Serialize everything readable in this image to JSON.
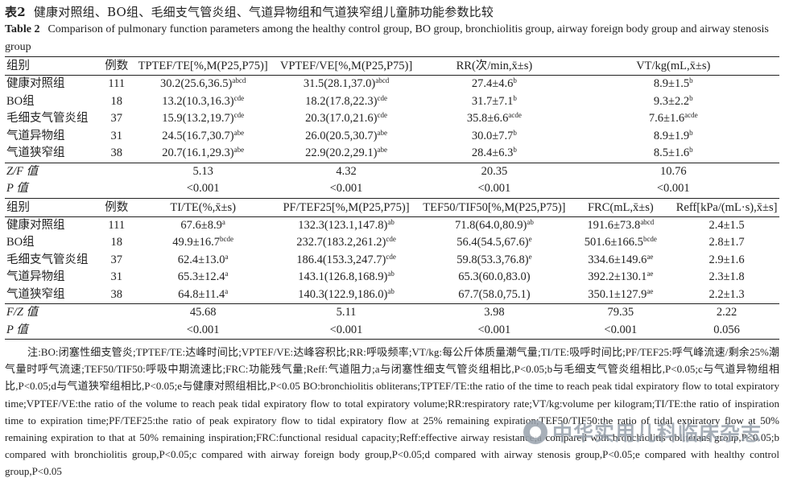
{
  "caption": {
    "cn_label": "表2",
    "cn_title": "健康对照组、BO组、毛细支气管炎组、气道异物组和气道狭窄组儿童肺功能参数比较",
    "en_label": "Table 2",
    "en_title": "Comparison of pulmonary function parameters among the healthy control group, BO group, bronchiolitis group, airway foreign body group and airway stenosis group"
  },
  "table1": {
    "headers": [
      "组别",
      "例数",
      "TPTEF/TE[%,M(P25,P75)]",
      "VPTEF/VE[%,M(P25,P75)]",
      "RR(次/min,x̄±s)",
      "VT/kg(mL,x̄±s)"
    ],
    "rows": [
      {
        "group": "健康对照组",
        "n": "111",
        "v1": "30.2(25.6,36.5)",
        "s1": "abcd",
        "v2": "31.5(28.1,37.0)",
        "s2": "abcd",
        "v3": "27.4±4.6",
        "s3": "b",
        "v4": "8.9±1.5",
        "s4": "b"
      },
      {
        "group": "BO组",
        "n": "18",
        "v1": "13.2(10.3,16.3)",
        "s1": "cde",
        "v2": "18.2(17.8,22.3)",
        "s2": "cde",
        "v3": "31.7±7.1",
        "s3": "b",
        "v4": "9.3±2.2",
        "s4": "b"
      },
      {
        "group": "毛细支气管炎组",
        "n": "37",
        "v1": "15.9(13.2,19.7)",
        "s1": "cde",
        "v2": "20.3(17.0,21.6)",
        "s2": "cde",
        "v3": "35.8±6.6",
        "s3": "acde",
        "v4": "7.6±1.6",
        "s4": "acde"
      },
      {
        "group": "气道异物组",
        "n": "31",
        "v1": "24.5(16.7,30.7)",
        "s1": "abe",
        "v2": "26.0(20.5,30.7)",
        "s2": "abe",
        "v3": "30.0±7.7",
        "s3": "b",
        "v4": "8.9±1.9",
        "s4": "b"
      },
      {
        "group": "气道狭窄组",
        "n": "38",
        "v1": "20.7(16.1,29.3)",
        "s1": "abe",
        "v2": "22.9(20.2,29.1)",
        "s2": "abe",
        "v3": "28.4±6.3",
        "s3": "b",
        "v4": "8.5±1.6",
        "s4": "b"
      }
    ],
    "stat_label": "Z/F 值",
    "stats": [
      "5.13",
      "4.32",
      "20.35",
      "10.76"
    ],
    "p_label": "P 值",
    "p_values": [
      "<0.001",
      "<0.001",
      "<0.001",
      "<0.001"
    ]
  },
  "table2": {
    "headers": [
      "组别",
      "例数",
      "TI/TE(%,x̄±s)",
      "PF/TEF25[%,M(P25,P75)]",
      "TEF50/TIF50[%,M(P25,P75)]",
      "FRC(mL,x̄±s)",
      "Reff[kPa/(mL·s),x̄±s]"
    ],
    "rows": [
      {
        "group": "健康对照组",
        "n": "111",
        "v1": "67.6±8.9",
        "s1": "a",
        "v2": "132.3(123.1,147.8)",
        "s2": "ab",
        "v3": "71.8(64.0,80.9)",
        "s3": "ab",
        "v4": "191.6±73.8",
        "s4": "abcd",
        "v5": "2.4±1.5",
        "s5": ""
      },
      {
        "group": "BO组",
        "n": "18",
        "v1": "49.9±16.7",
        "s1": "bcde",
        "v2": "232.7(183.2,261.2)",
        "s2": "cde",
        "v3": "56.4(54.5,67.6)",
        "s3": "e",
        "v4": "501.6±166.5",
        "s4": "bcde",
        "v5": "2.8±1.7",
        "s5": ""
      },
      {
        "group": "毛细支气管炎组",
        "n": "37",
        "v1": "62.4±13.0",
        "s1": "a",
        "v2": "186.4(153.3,247.7)",
        "s2": "cde",
        "v3": "59.8(53.3,76.8)",
        "s3": "e",
        "v4": "334.6±149.6",
        "s4": "ae",
        "v5": "2.9±1.6",
        "s5": ""
      },
      {
        "group": "气道异物组",
        "n": "31",
        "v1": "65.3±12.4",
        "s1": "a",
        "v2": "143.1(126.8,168.9)",
        "s2": "ab",
        "v3": "65.3(60.0,83.0)",
        "s3": "",
        "v4": "392.2±130.1",
        "s4": "ae",
        "v5": "2.3±1.8",
        "s5": ""
      },
      {
        "group": "气道狭窄组",
        "n": "38",
        "v1": "64.8±11.4",
        "s1": "a",
        "v2": "140.3(122.9,186.0)",
        "s2": "ab",
        "v3": "67.7(58.0,75.1)",
        "s3": "",
        "v4": "350.1±127.9",
        "s4": "ae",
        "v5": "2.2±1.3",
        "s5": ""
      }
    ],
    "stat_label": "F/Z 值",
    "stats": [
      "45.68",
      "5.11",
      "3.98",
      "79.35",
      "2.22"
    ],
    "p_label": "P 值",
    "p_values": [
      "<0.001",
      "<0.001",
      "<0.001",
      "<0.001",
      "0.056"
    ]
  },
  "note_cn": "注:BO:闭塞性细支管炎;TPTEF/TE:达峰时间比;VPTEF/VE:达峰容积比;RR:呼吸频率;VT/kg:每公斤体质量潮气量;TI/TE:吸呼时间比;PF/TEF25:呼气峰流速/剩余25%潮气量时呼气流速;TEF50/TIF50:呼吸中期流速比;FRC:功能残气量;Reff:气道阻力;a与闭塞性细支气管炎组相比,P<0.05;b与毛细支气管炎组相比,P<0.05;c与气道异物组相比,P<0.05;d与气道狭窄组相比,P<0.05;e与健康对照组相比,P<0.05",
  "note_en": "BO:bronchiolitis obliterans;TPTEF/TE:the ratio of the time to reach peak tidal expiratory flow to total expiratory time;VPTEF/VE:the ratio of the volume to reach peak tidal expiratory flow to total expiratory volume;RR:respiratory rate;VT/kg:volume per kilogram;TI/TE:the ratio of inspiration time to expiration time;PF/TEF25:the ratio of peak expiratory flow to tidal expiratory flow at 25% remaining expiration;TEF50/TIF50:the ratio of tidal expiratory flow at 50% remaining expiration to that at 50% remaining inspiration;FRC:functional residual capacity;Reff:effective airway resistance;a compared with bronchiolitis obliterans group,P<0.05;b compared with bronchiolitis group,P<0.05;c compared with airway foreign body group,P<0.05;d compared with airway stenosis group,P<0.05;e compared with healthy control group,P<0.05",
  "watermark": "中华实用儿科临床杂志"
}
